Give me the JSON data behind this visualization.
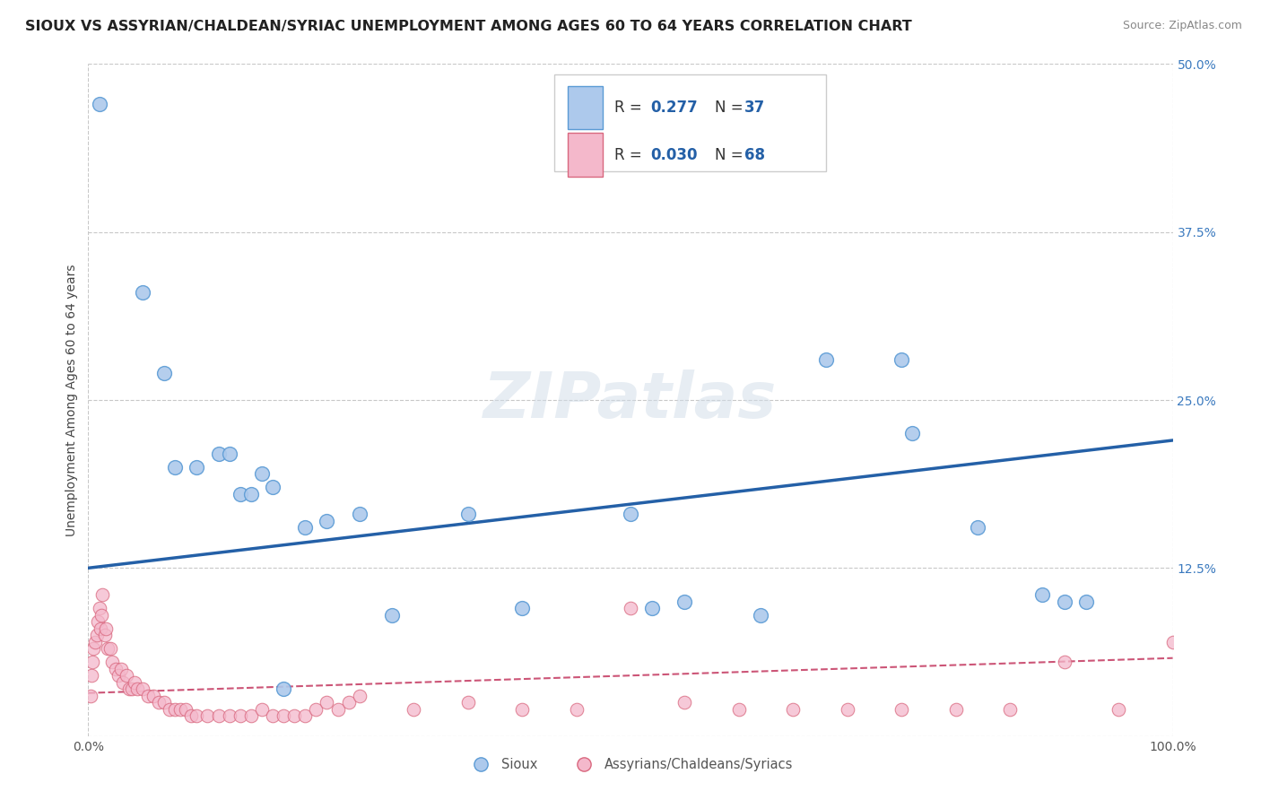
{
  "title": "SIOUX VS ASSYRIAN/CHALDEAN/SYRIAC UNEMPLOYMENT AMONG AGES 60 TO 64 YEARS CORRELATION CHART",
  "source": "Source: ZipAtlas.com",
  "ylabel": "Unemployment Among Ages 60 to 64 years",
  "xlim": [
    0,
    100
  ],
  "ylim": [
    0,
    50
  ],
  "yticks": [
    0,
    12.5,
    25,
    37.5,
    50
  ],
  "yticklabels": [
    "",
    "12.5%",
    "25.0%",
    "37.5%",
    "50.0%"
  ],
  "background_color": "#ffffff",
  "grid_color": "#c8c8c8",
  "watermark": "ZIPatlas",
  "sioux_color": "#adc9ec",
  "sioux_edge_color": "#5b9bd5",
  "sioux_line_color": "#2460a7",
  "sioux_x": [
    1.0,
    5.0,
    7.0,
    8.0,
    10.0,
    12.0,
    13.0,
    14.0,
    15.0,
    16.0,
    17.0,
    18.0,
    20.0,
    22.0,
    25.0,
    28.0,
    35.0,
    40.0,
    50.0,
    52.0,
    55.0,
    62.0,
    68.0,
    75.0,
    76.0,
    82.0,
    88.0,
    90.0,
    92.0
  ],
  "sioux_y": [
    47.0,
    33.0,
    27.0,
    20.0,
    20.0,
    21.0,
    21.0,
    18.0,
    18.0,
    19.5,
    18.5,
    3.5,
    15.5,
    16.0,
    16.5,
    9.0,
    16.5,
    9.5,
    16.5,
    9.5,
    10.0,
    9.0,
    28.0,
    28.0,
    22.5,
    15.5,
    10.5,
    10.0,
    10.0
  ],
  "sioux_line_x": [
    0,
    100
  ],
  "sioux_line_y": [
    12.5,
    22.0
  ],
  "acs_color": "#f4b8cb",
  "acs_edge_color": "#d9687f",
  "acs_line_color": "#cc5577",
  "acs_x": [
    0.2,
    0.3,
    0.4,
    0.5,
    0.6,
    0.8,
    0.9,
    1.0,
    1.1,
    1.2,
    1.3,
    1.5,
    1.6,
    1.8,
    2.0,
    2.2,
    2.5,
    2.8,
    3.0,
    3.2,
    3.5,
    3.8,
    4.0,
    4.3,
    4.5,
    5.0,
    5.5,
    6.0,
    6.5,
    7.0,
    7.5,
    8.0,
    8.5,
    9.0,
    9.5,
    10.0,
    11.0,
    12.0,
    13.0,
    14.0,
    15.0,
    16.0,
    17.0,
    18.0,
    19.0,
    20.0,
    21.0,
    22.0,
    23.0,
    24.0,
    25.0,
    30.0,
    35.0,
    40.0,
    45.0,
    50.0,
    55.0,
    60.0,
    65.0,
    70.0,
    75.0,
    80.0,
    85.0,
    90.0,
    95.0,
    100.0
  ],
  "acs_y": [
    3.0,
    4.5,
    5.5,
    6.5,
    7.0,
    7.5,
    8.5,
    9.5,
    8.0,
    9.0,
    10.5,
    7.5,
    8.0,
    6.5,
    6.5,
    5.5,
    5.0,
    4.5,
    5.0,
    4.0,
    4.5,
    3.5,
    3.5,
    4.0,
    3.5,
    3.5,
    3.0,
    3.0,
    2.5,
    2.5,
    2.0,
    2.0,
    2.0,
    2.0,
    1.5,
    1.5,
    1.5,
    1.5,
    1.5,
    1.5,
    1.5,
    2.0,
    1.5,
    1.5,
    1.5,
    1.5,
    2.0,
    2.5,
    2.0,
    2.5,
    3.0,
    2.0,
    2.5,
    2.0,
    2.0,
    9.5,
    2.5,
    2.0,
    2.0,
    2.0,
    2.0,
    2.0,
    2.0,
    5.5,
    2.0,
    7.0
  ],
  "acs_line_x": [
    0,
    100
  ],
  "acs_line_y": [
    3.2,
    5.8
  ],
  "legend_R_values": [
    "0.277",
    "0.030"
  ],
  "legend_N_values": [
    "37",
    "68"
  ],
  "legend_labels": [
    "Sioux",
    "Assyrians/Chaldeans/Syriacs"
  ],
  "legend_colors": [
    "#adc9ec",
    "#f4b8cb"
  ],
  "legend_edge_colors": [
    "#5b9bd5",
    "#d9687f"
  ],
  "title_fontsize": 11.5,
  "source_fontsize": 9,
  "axis_label_fontsize": 10,
  "tick_fontsize": 10,
  "legend_fontsize": 12
}
